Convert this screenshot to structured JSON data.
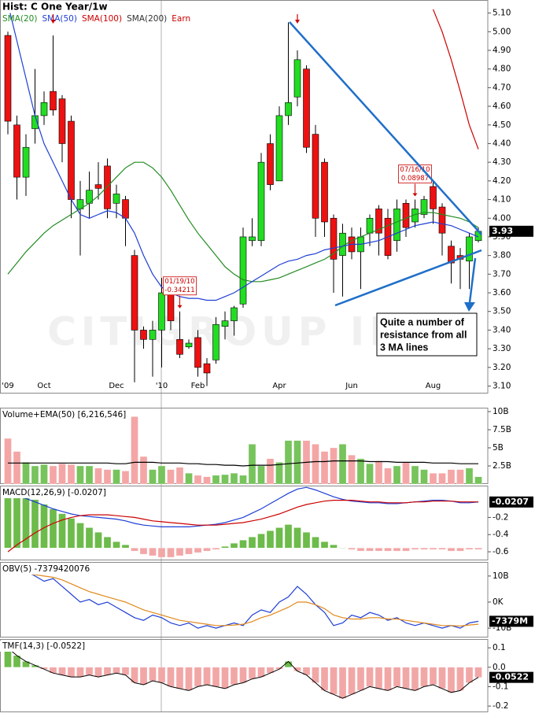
{
  "chart_data": [
    {
      "type": "candlestick",
      "title": "Hist: C One Year/1w",
      "watermark": "CITIGROUP INC",
      "categories": [
        "'09",
        null,
        null,
        null,
        "Oct",
        null,
        null,
        null,
        null,
        null,
        null,
        null,
        "Dec",
        null,
        null,
        null,
        null,
        "'10",
        null,
        null,
        null,
        "Feb",
        null,
        null,
        null,
        null,
        null,
        null,
        null,
        null,
        "Apr",
        null,
        null,
        null,
        null,
        null,
        null,
        null,
        "Jun",
        null,
        null,
        null,
        null,
        null,
        null,
        null,
        null,
        "Aug",
        null,
        null,
        null,
        null,
        null
      ],
      "open": [
        4.98,
        4.5,
        4.22,
        4.48,
        4.55,
        4.68,
        4.64,
        4.52,
        4.05,
        4.08,
        4.18,
        4.28,
        4.08,
        4.1,
        3.8,
        3.4,
        3.35,
        3.4,
        3.65,
        3.35,
        3.31,
        3.36,
        3.22,
        3.24,
        3.42,
        3.45,
        3.54,
        3.88,
        3.88,
        4.4,
        4.2,
        4.55,
        4.65,
        4.8,
        4.45,
        4.3,
        4.0,
        3.8,
        3.9,
        3.82,
        3.92,
        4.05,
        4.0,
        3.88,
        4.08,
        3.98,
        4.02,
        4.17,
        4.06,
        3.85,
        3.8,
        3.77,
        3.88
      ],
      "high": [
        5.0,
        4.55,
        4.45,
        4.8,
        4.68,
        4.98,
        4.66,
        4.55,
        4.2,
        4.25,
        4.3,
        4.32,
        4.18,
        4.12,
        3.83,
        3.42,
        3.45,
        3.68,
        3.68,
        3.5,
        3.35,
        3.4,
        3.25,
        3.47,
        3.5,
        3.53,
        3.95,
        4.0,
        4.35,
        4.45,
        4.6,
        5.05,
        4.9,
        4.82,
        4.5,
        4.32,
        4.02,
        3.97,
        3.95,
        3.95,
        4.02,
        4.07,
        4.05,
        4.1,
        4.1,
        4.1,
        4.12,
        4.2,
        4.08,
        3.88,
        3.84,
        3.92,
        3.95
      ],
      "low": [
        4.45,
        4.1,
        4.12,
        4.4,
        4.5,
        4.55,
        4.3,
        4.0,
        3.8,
        4.0,
        4.1,
        4.0,
        4.0,
        3.85,
        3.12,
        3.3,
        3.15,
        3.2,
        3.4,
        3.25,
        3.3,
        3.15,
        3.1,
        3.22,
        3.35,
        3.37,
        3.52,
        3.85,
        3.85,
        4.15,
        4.2,
        4.5,
        4.6,
        4.35,
        3.9,
        3.9,
        3.6,
        3.58,
        3.78,
        3.62,
        3.85,
        3.8,
        3.78,
        3.82,
        3.9,
        3.95,
        4.0,
        3.97,
        3.8,
        3.65,
        3.62,
        3.62,
        3.87
      ],
      "close": [
        4.52,
        4.22,
        4.38,
        4.55,
        4.62,
        4.58,
        4.4,
        4.1,
        4.1,
        4.15,
        4.16,
        4.05,
        4.13,
        4.0,
        3.4,
        3.35,
        3.4,
        3.6,
        3.45,
        3.27,
        3.33,
        3.2,
        3.17,
        3.43,
        3.45,
        3.52,
        3.9,
        3.9,
        4.3,
        4.18,
        4.55,
        4.62,
        4.85,
        4.38,
        4.0,
        3.98,
        3.78,
        3.92,
        3.82,
        3.9,
        4.0,
        3.92,
        3.8,
        4.05,
        3.95,
        4.05,
        4.1,
        4.05,
        3.92,
        3.76,
        3.78,
        3.9,
        3.93
      ],
      "up_color": "#22dd22",
      "down_color": "#ee1111",
      "flag_last": true,
      "series": [
        {
          "name": "SMA(20)",
          "color": "#228b22",
          "kind": "line",
          "values": [
            3.7,
            3.76,
            3.82,
            3.87,
            3.92,
            3.96,
            3.99,
            4.02,
            4.05,
            4.08,
            4.12,
            4.17,
            4.22,
            4.27,
            4.3,
            4.3,
            4.27,
            4.22,
            4.15,
            4.07,
            3.99,
            3.92,
            3.86,
            3.8,
            3.74,
            3.7,
            3.67,
            3.66,
            3.66,
            3.67,
            3.68,
            3.7,
            3.72,
            3.74,
            3.76,
            3.78,
            3.81,
            3.85,
            3.88,
            3.9,
            3.92,
            3.94,
            3.96,
            3.98,
            4.0,
            4.02,
            4.03,
            4.03,
            4.02,
            4.01,
            4.0,
            3.98,
            3.95
          ]
        },
        {
          "name": "SMA(50)",
          "color": "#1f3fd6",
          "kind": "line",
          "values": [
            5.15,
            4.95,
            4.75,
            4.55,
            4.4,
            4.3,
            4.2,
            4.1,
            4.02,
            4.0,
            4.02,
            4.04,
            4.03,
            4.0,
            3.92,
            3.8,
            3.7,
            3.63,
            3.6,
            3.58,
            3.57,
            3.57,
            3.56,
            3.56,
            3.58,
            3.6,
            3.63,
            3.66,
            3.69,
            3.72,
            3.75,
            3.77,
            3.78,
            3.8,
            3.81,
            3.83,
            3.84,
            3.85,
            3.86,
            3.86,
            3.87,
            3.88,
            3.9,
            3.92,
            3.94,
            3.96,
            3.97,
            3.98,
            3.97,
            3.96,
            3.94,
            3.92,
            3.9
          ]
        },
        {
          "name": "SMA(100)",
          "color": "#cc0000",
          "kind": "line",
          "values": [
            null,
            null,
            null,
            null,
            null,
            null,
            null,
            null,
            null,
            null,
            null,
            null,
            null,
            null,
            null,
            null,
            null,
            null,
            null,
            null,
            null,
            null,
            null,
            null,
            null,
            null,
            null,
            null,
            null,
            null,
            null,
            null,
            null,
            null,
            null,
            null,
            null,
            null,
            null,
            null,
            null,
            null,
            null,
            null,
            null,
            null,
            null,
            5.12,
            5.0,
            4.85,
            4.68,
            4.5,
            4.37
          ]
        },
        {
          "name": "SMA(200)",
          "color": "#333333"
        }
      ],
      "earnings": {
        "name": "Earn",
        "color": "#cc0000",
        "at": [
          5,
          32
        ]
      },
      "annotations": [
        {
          "index": 19,
          "lines": [
            "01/19/10",
            "-0.34211"
          ]
        },
        {
          "index": 45,
          "lines": [
            "07/16/10",
            "0.08987"
          ]
        }
      ],
      "note": [
        "Quite a number of",
        "resistance from all",
        "3 MA lines"
      ],
      "ylim": [
        3.06,
        5.17
      ],
      "yticks": [
        {
          "value": 3.1,
          "label": "3.10"
        },
        {
          "value": 3.2,
          "label": "3.20"
        },
        {
          "value": 3.3,
          "label": "3.30"
        },
        {
          "value": 3.4,
          "label": "3.40"
        },
        {
          "value": 3.5,
          "label": "3.50"
        },
        {
          "value": 3.6,
          "label": "3.60"
        },
        {
          "value": 3.7,
          "label": "3.70"
        },
        {
          "value": 3.8,
          "label": "3.80"
        },
        {
          "value": 3.9,
          "label": "3.90"
        },
        {
          "value": 4.0,
          "label": "4.00"
        },
        {
          "value": 4.1,
          "label": "4.10"
        },
        {
          "value": 4.2,
          "label": "4.20"
        },
        {
          "value": 4.3,
          "label": "4.30"
        },
        {
          "value": 4.4,
          "label": "4.40"
        },
        {
          "value": 4.5,
          "label": "4.50"
        },
        {
          "value": 4.6,
          "label": "4.60"
        },
        {
          "value": 4.7,
          "label": "4.70"
        },
        {
          "value": 4.8,
          "label": "4.80"
        },
        {
          "value": 4.9,
          "label": "4.90"
        },
        {
          "value": 5.0,
          "label": "5.00"
        },
        {
          "value": 5.1,
          "label": "5.10"
        }
      ]
    },
    {
      "type": "bar",
      "title": "Volume+EMA(50) [6,216,546]",
      "series": [
        {
          "kind": "bar-candle",
          "up_color": "#77c35c",
          "down_color": "#f4a6a6",
          "values": [
            6.3,
            4.5,
            3.0,
            2.5,
            2.7,
            2.5,
            2.8,
            2.7,
            2.5,
            2.5,
            2.2,
            2.0,
            2.0,
            1.8,
            9.3,
            3.8,
            2.0,
            2.5,
            2.0,
            2.3,
            1.5,
            1.2,
            1.0,
            1.2,
            1.3,
            1.5,
            1.2,
            5.5,
            2.5,
            3.5,
            3.0,
            6.0,
            6.0,
            6.0,
            5.5,
            4.5,
            5.0,
            5.5,
            4.0,
            3.5,
            2.8,
            3.2,
            2.2,
            2.5,
            3.0,
            2.5,
            2.0,
            1.5,
            1.5,
            2.0,
            2.0,
            2.2,
            1.0
          ]
        },
        {
          "kind": "line",
          "color": "#000000",
          "values": [
            2.9,
            2.9,
            2.9,
            2.9,
            2.9,
            2.9,
            2.9,
            2.9,
            2.9,
            2.9,
            2.9,
            2.9,
            2.8,
            2.8,
            3.0,
            3.0,
            3.0,
            2.9,
            2.9,
            2.9,
            2.8,
            2.8,
            2.7,
            2.7,
            2.6,
            2.6,
            2.5,
            2.6,
            2.6,
            2.6,
            2.7,
            2.8,
            2.9,
            3.0,
            3.1,
            3.1,
            3.2,
            3.2,
            3.2,
            3.2,
            3.1,
            3.1,
            3.1,
            3.0,
            3.0,
            3.0,
            3.0,
            2.9,
            2.9,
            2.9,
            2.8,
            2.8,
            2.8
          ]
        }
      ],
      "ylim": [
        0,
        10.54
      ],
      "yticks": [
        {
          "value": 10,
          "label": "10B"
        },
        {
          "value": 7.5,
          "label": "7.5B"
        },
        {
          "value": 5,
          "label": "5B"
        },
        {
          "value": 2.5,
          "label": "2.5B"
        }
      ]
    },
    {
      "type": "line",
      "title": "MACD(12,26,9) [-0.0207]",
      "series": [
        {
          "kind": "bar-sign",
          "axis": "y2",
          "up_color": "#6dbb4a",
          "down_color": "#f2a7a7",
          "values": [
            0.38,
            0.36,
            0.34,
            0.31,
            0.28,
            0.25,
            0.22,
            0.19,
            0.16,
            0.13,
            0.1,
            0.07,
            0.04,
            0.02,
            -0.02,
            -0.04,
            -0.05,
            -0.06,
            -0.06,
            -0.05,
            -0.04,
            -0.03,
            -0.02,
            -0.01,
            0.01,
            0.03,
            0.05,
            0.07,
            0.09,
            0.11,
            0.13,
            0.15,
            0.13,
            0.1,
            0.07,
            0.04,
            0.02,
            0.0,
            -0.01,
            -0.02,
            -0.02,
            -0.02,
            -0.02,
            -0.02,
            -0.02,
            -0.01,
            -0.01,
            -0.01,
            -0.01,
            -0.02,
            -0.02,
            -0.01,
            -0.01
          ]
        },
        {
          "kind": "line",
          "color": "#1f3fd6",
          "flag_last": true,
          "values": [
            0.1,
            0.06,
            0.02,
            -0.02,
            -0.06,
            -0.1,
            -0.13,
            -0.16,
            -0.18,
            -0.19,
            -0.2,
            -0.21,
            -0.22,
            -0.24,
            -0.27,
            -0.29,
            -0.3,
            -0.31,
            -0.31,
            -0.31,
            -0.31,
            -0.3,
            -0.29,
            -0.28,
            -0.26,
            -0.23,
            -0.2,
            -0.15,
            -0.1,
            -0.04,
            0.02,
            0.08,
            0.13,
            0.15,
            0.12,
            0.08,
            0.04,
            0.01,
            -0.01,
            -0.02,
            -0.03,
            -0.03,
            -0.04,
            -0.04,
            -0.03,
            -0.02,
            -0.01,
            0.0,
            0.0,
            -0.01,
            -0.03,
            -0.03,
            -0.0207
          ]
        },
        {
          "kind": "line",
          "color": "#cc0000",
          "values": [
            -0.6,
            -0.52,
            -0.45,
            -0.38,
            -0.32,
            -0.27,
            -0.23,
            -0.2,
            -0.18,
            -0.17,
            -0.17,
            -0.17,
            -0.18,
            -0.19,
            -0.2,
            -0.22,
            -0.24,
            -0.25,
            -0.26,
            -0.27,
            -0.28,
            -0.29,
            -0.29,
            -0.29,
            -0.28,
            -0.27,
            -0.26,
            -0.24,
            -0.22,
            -0.19,
            -0.16,
            -0.12,
            -0.08,
            -0.05,
            -0.03,
            -0.01,
            0.0,
            0.0,
            0.0,
            -0.01,
            -0.02,
            -0.02,
            -0.03,
            -0.03,
            -0.03,
            -0.02,
            -0.02,
            -0.01,
            -0.01,
            -0.01,
            -0.02,
            -0.02,
            -0.02
          ]
        }
      ],
      "ylim": [
        -0.7,
        0.17
      ],
      "y2lim": [
        -0.08,
        0.4
      ],
      "yticks": [
        -0.2,
        -0.4,
        -0.6
      ]
    },
    {
      "type": "line",
      "title": "OBV(5) -7379420076",
      "series": [
        {
          "kind": "line",
          "color": "#1f3fd6",
          "flag_last": true,
          "last_label": "-7379M",
          "values": [
            13,
            11,
            12,
            10,
            8,
            9,
            6,
            3,
            0,
            1,
            -1,
            0,
            -2,
            -4,
            -6,
            -7,
            -5,
            -6,
            -8,
            -9,
            -8,
            -10,
            -9,
            -10,
            -9,
            -8,
            -9,
            -5,
            -3,
            -4,
            0,
            2,
            6,
            3,
            -1,
            -4,
            -9,
            -8,
            -5,
            -6,
            -4,
            -5,
            -7,
            -6,
            -8,
            -9,
            -8,
            -9,
            -10,
            -9,
            -10,
            -8,
            -7.379
          ]
        },
        {
          "kind": "line",
          "color": "#e08a1e",
          "values": [
            11,
            11,
            11,
            10.5,
            10,
            9.5,
            8.5,
            7,
            5.5,
            4,
            3,
            2,
            1,
            0,
            -1.5,
            -3,
            -4,
            -5,
            -6,
            -7,
            -7.5,
            -8,
            -8.5,
            -9,
            -9,
            -8.8,
            -8.5,
            -7.5,
            -6,
            -5,
            -3.5,
            -2,
            0,
            0,
            -1,
            -2.5,
            -5,
            -6,
            -6.5,
            -6.5,
            -6,
            -6,
            -6.5,
            -6.5,
            -7,
            -7.5,
            -8,
            -8.5,
            -9,
            -9,
            -9.2,
            -8.8,
            -8.5
          ]
        }
      ],
      "ylim": [
        -13.6,
        15.4
      ],
      "yticks": [
        {
          "value": 10,
          "label": "10B"
        },
        {
          "value": 0,
          "label": "0K"
        },
        {
          "value": -10,
          "label": "-10B"
        }
      ]
    },
    {
      "type": "bar",
      "title": "TMF(14,3) [-0.0522]",
      "series": [
        {
          "kind": "bar-sign",
          "up_color": "#6dbb4a",
          "down_color": "#f2a7a7",
          "line_color": "#000000",
          "flag_last": true,
          "values": [
            0.1,
            0.06,
            0.03,
            0.01,
            -0.01,
            -0.03,
            -0.04,
            -0.05,
            -0.05,
            -0.04,
            -0.05,
            -0.04,
            -0.03,
            -0.04,
            -0.08,
            -0.09,
            -0.07,
            -0.08,
            -0.1,
            -0.11,
            -0.12,
            -0.1,
            -0.09,
            -0.1,
            -0.11,
            -0.09,
            -0.08,
            -0.06,
            -0.05,
            -0.03,
            -0.01,
            0.03,
            -0.02,
            -0.04,
            -0.08,
            -0.12,
            -0.14,
            -0.16,
            -0.14,
            -0.12,
            -0.1,
            -0.11,
            -0.12,
            -0.1,
            -0.11,
            -0.12,
            -0.1,
            -0.09,
            -0.11,
            -0.13,
            -0.12,
            -0.08,
            -0.0522
          ]
        }
      ],
      "ylim": [
        -0.232,
        0.145
      ],
      "yticks": [
        0.1,
        {
          "value": 0,
          "label": "0.0"
        },
        -0.1,
        -0.2
      ]
    }
  ]
}
